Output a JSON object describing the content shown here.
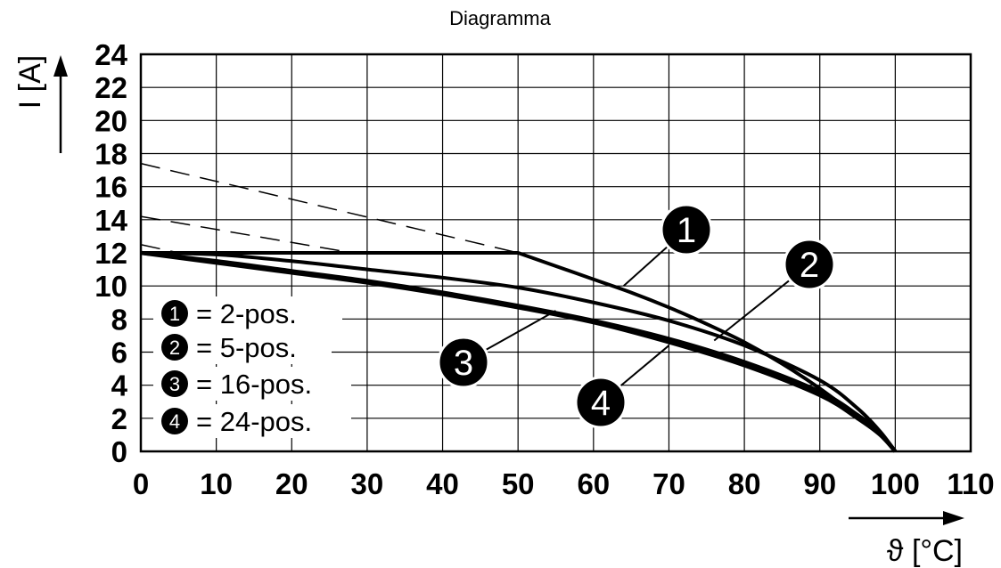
{
  "chart_data": {
    "type": "line",
    "title": "Diagramma",
    "xlabel": "ϑ [°C]",
    "ylabel": "I [A]",
    "xlim": [
      0,
      110
    ],
    "ylim": [
      0,
      24
    ],
    "xticks": [
      0,
      10,
      20,
      30,
      40,
      50,
      60,
      70,
      80,
      90,
      100,
      110
    ],
    "yticks": [
      0,
      2,
      4,
      6,
      8,
      10,
      12,
      14,
      16,
      18,
      20,
      22,
      24
    ],
    "grid": true,
    "legend_position": "left",
    "series": [
      {
        "name": "2-pos.",
        "marker": "1",
        "x": [
          0,
          50,
          55,
          60,
          65,
          70,
          75,
          80,
          85,
          90,
          95,
          98,
          100
        ],
        "y": [
          12,
          12,
          11.2,
          10.4,
          9.6,
          8.7,
          7.7,
          6.6,
          5.3,
          3.8,
          2.1,
          1.0,
          0
        ]
      },
      {
        "name": "5-pos.",
        "marker": "2",
        "x": [
          0,
          10,
          20,
          30,
          40,
          50,
          60,
          70,
          80,
          90,
          95,
          98,
          100
        ],
        "y": [
          12,
          11.9,
          11.5,
          11,
          10.5,
          9.9,
          9.0,
          7.9,
          6.4,
          4.3,
          2.6,
          1.2,
          0
        ]
      },
      {
        "name": "16-pos.",
        "marker": "3",
        "x": [
          0,
          10,
          20,
          30,
          40,
          50,
          60,
          70,
          80,
          90,
          95,
          98,
          100
        ],
        "y": [
          12,
          11.5,
          10.9,
          10.3,
          9.6,
          8.8,
          7.9,
          6.8,
          5.4,
          3.6,
          2.2,
          1.1,
          0
        ]
      },
      {
        "name": "24-pos.",
        "marker": "4",
        "x": [
          0,
          10,
          20,
          30,
          40,
          50,
          60,
          70,
          80,
          90,
          95,
          98,
          100
        ],
        "y": [
          12,
          11.4,
          10.8,
          10.2,
          9.5,
          8.7,
          7.8,
          6.6,
          5.2,
          3.4,
          2.0,
          1.0,
          0
        ]
      }
    ],
    "dashed_extensions": [
      {
        "x": [
          0,
          50
        ],
        "y": [
          17.4,
          12
        ]
      },
      {
        "x": [
          0,
          28
        ],
        "y": [
          14.2,
          12
        ]
      },
      {
        "x": [
          0,
          5
        ],
        "y": [
          12.5,
          12
        ]
      }
    ],
    "callouts": [
      {
        "marker": "1",
        "x": 64,
        "y": 10
      },
      {
        "marker": "2",
        "x": 76,
        "y": 6.7
      },
      {
        "marker": "3",
        "x": 55,
        "y": 8.5
      },
      {
        "marker": "4",
        "x": 70,
        "y": 6.4
      }
    ],
    "legend": [
      {
        "marker": "1",
        "text": "= 2-pos."
      },
      {
        "marker": "2",
        "text": "= 5-pos."
      },
      {
        "marker": "3",
        "text": "= 16-pos."
      },
      {
        "marker": "4",
        "text": "= 24-pos."
      }
    ]
  }
}
